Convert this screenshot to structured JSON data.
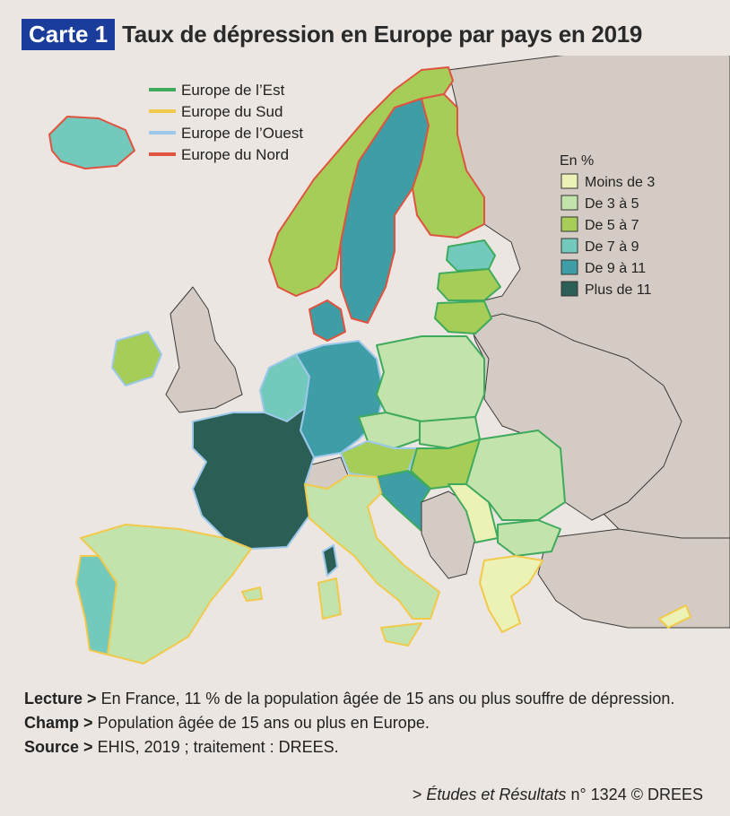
{
  "header": {
    "badge": "Carte 1",
    "title": "Taux de dépression en Europe par pays en 2019"
  },
  "region_legend": {
    "items": [
      {
        "label": "Europe de l’Est",
        "color": "#3faa5c"
      },
      {
        "label": "Europe du Sud",
        "color": "#f1c94b"
      },
      {
        "label": "Europe de l’Ouest",
        "color": "#9cc8ea"
      },
      {
        "label": "Europe du Nord",
        "color": "#e0533f"
      }
    ]
  },
  "value_legend": {
    "unit": "En %",
    "items": [
      {
        "label": "Moins de 3",
        "color": "#ecf2b6"
      },
      {
        "label": "De 3 à 5",
        "color": "#c3e3ad"
      },
      {
        "label": "De 5 à 7",
        "color": "#a6cd57"
      },
      {
        "label": "De 7 à 9",
        "color": "#74c9bd"
      },
      {
        "label": "De 9 à 11",
        "color": "#3f9ea5"
      },
      {
        "label": "Plus de 11",
        "color": "#2b5f55"
      }
    ]
  },
  "colors": {
    "non_covered_land": "#d4ccc4",
    "sea": "#ebe6e1"
  },
  "notes": {
    "lecture_label": "Lecture >",
    "lecture_text": "En France, 11 % de la population âgée de 15 ans ou plus souffre de dépression.",
    "champ_label": "Champ >",
    "champ_text": "Population âgée de 15 ans ou plus en Europe.",
    "source_label": "Source >",
    "source_text": "EHIS, 2019 ; traitement : DREES."
  },
  "credit": {
    "prefix": ">",
    "publication": "Études et Résultats",
    "suffix": "n° 1324 © DREES"
  }
}
